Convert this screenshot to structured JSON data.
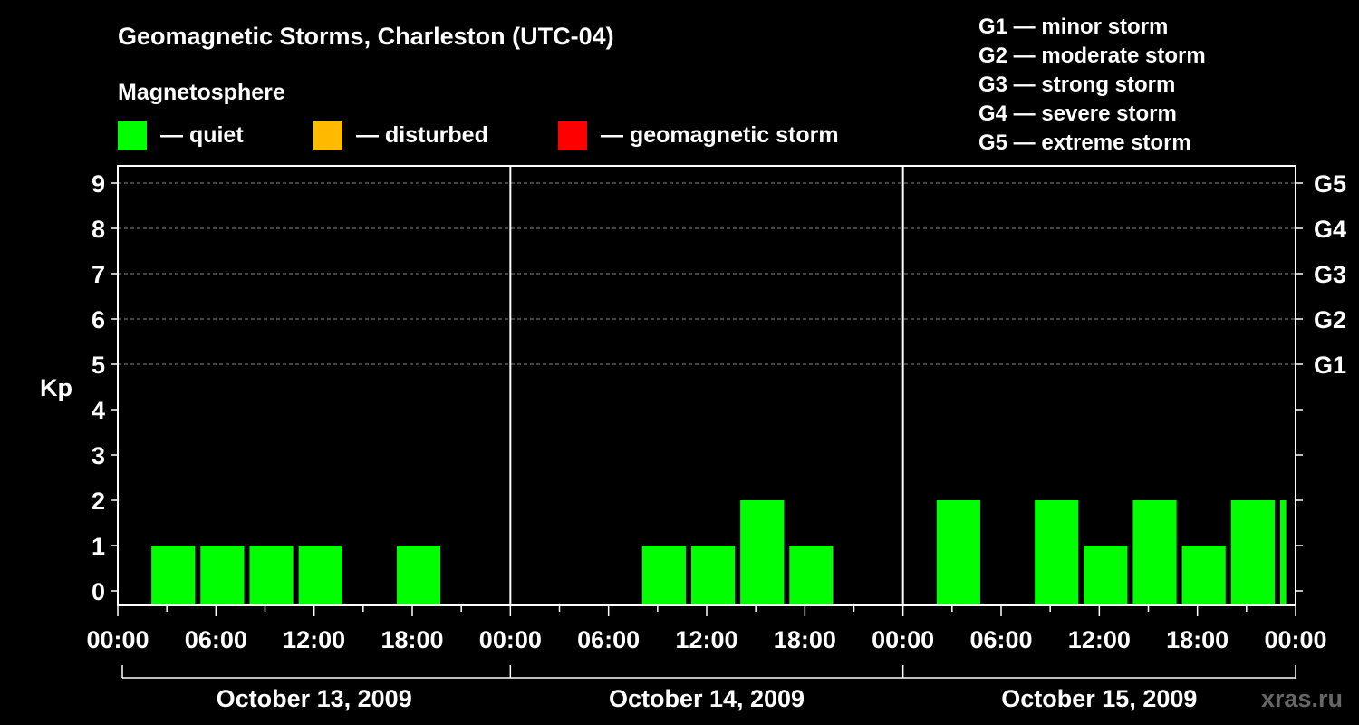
{
  "header": {
    "title": "Geomagnetic Storms, Charleston (UTC-04)",
    "subtitle": "Magnetosphere"
  },
  "legend": {
    "items": [
      {
        "label": "— quiet",
        "color": "#00ff00"
      },
      {
        "label": "— disturbed",
        "color": "#ffbb00"
      },
      {
        "label": "— geomagnetic storm",
        "color": "#ff0000"
      }
    ],
    "storm_scale": [
      "G1 — minor storm",
      "G2 — moderate storm",
      "G3 — strong storm",
      "G4 — severe storm",
      "G5 — extreme storm"
    ]
  },
  "watermark": "xras.ru",
  "chart_data": {
    "type": "bar",
    "ylabel": "Kp",
    "ylim": [
      0,
      9
    ],
    "y_ticks": [
      "0",
      "1",
      "2",
      "3",
      "4",
      "5",
      "6",
      "7",
      "8",
      "9"
    ],
    "right_ticks": [
      {
        "value": 5,
        "label": "G1"
      },
      {
        "value": 6,
        "label": "G2"
      },
      {
        "value": 7,
        "label": "G3"
      },
      {
        "value": 8,
        "label": "G4"
      },
      {
        "value": 9,
        "label": "G5"
      }
    ],
    "grid_y": [
      5,
      6,
      7,
      8,
      9
    ],
    "x_range_hours": [
      0,
      72
    ],
    "x_tick_labels": [
      "00:00",
      "06:00",
      "12:00",
      "18:00",
      "00:00",
      "06:00",
      "12:00",
      "18:00",
      "00:00",
      "06:00",
      "12:00",
      "18:00",
      "00:00"
    ],
    "days": [
      "October 13, 2009",
      "October 14, 2009",
      "October 15, 2009"
    ],
    "bars": [
      {
        "start_hour": 2,
        "kp": 1,
        "color": "#00ff00"
      },
      {
        "start_hour": 5,
        "kp": 1,
        "color": "#00ff00"
      },
      {
        "start_hour": 8,
        "kp": 1,
        "color": "#00ff00"
      },
      {
        "start_hour": 11,
        "kp": 1,
        "color": "#00ff00"
      },
      {
        "start_hour": 17,
        "kp": 1,
        "color": "#00ff00"
      },
      {
        "start_hour": 32,
        "kp": 1,
        "color": "#00ff00"
      },
      {
        "start_hour": 35,
        "kp": 1,
        "color": "#00ff00"
      },
      {
        "start_hour": 38,
        "kp": 2,
        "color": "#00ff00"
      },
      {
        "start_hour": 41,
        "kp": 1,
        "color": "#00ff00"
      },
      {
        "start_hour": 50,
        "kp": 2,
        "color": "#00ff00"
      },
      {
        "start_hour": 56,
        "kp": 2,
        "color": "#00ff00"
      },
      {
        "start_hour": 59,
        "kp": 1,
        "color": "#00ff00"
      },
      {
        "start_hour": 62,
        "kp": 2,
        "color": "#00ff00"
      },
      {
        "start_hour": 65,
        "kp": 1,
        "color": "#00ff00"
      },
      {
        "start_hour": 68,
        "kp": 2,
        "color": "#00ff00"
      },
      {
        "start_hour": 71,
        "kp": 2,
        "color": "#00ff00",
        "duration": 0.7
      }
    ]
  }
}
